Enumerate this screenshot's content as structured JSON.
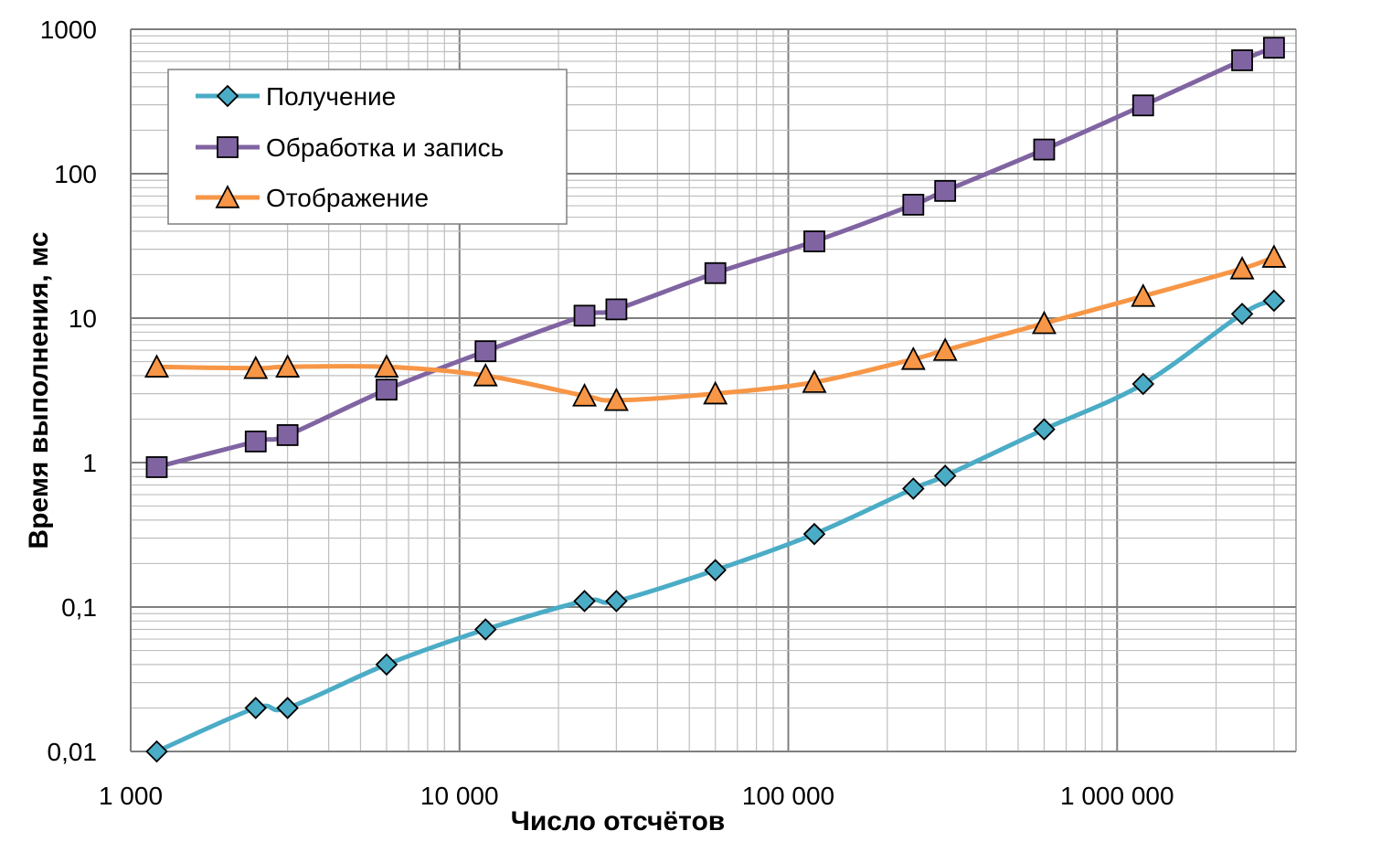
{
  "chart_data": {
    "type": "line",
    "title": "",
    "xlabel": "Число отсчётов",
    "ylabel": "Время выполнения, мс",
    "x_scale": "log",
    "y_scale": "log",
    "xlim": [
      1000,
      3500000
    ],
    "ylim": [
      0.01,
      1000
    ],
    "x_ticks": [
      {
        "value": 1000,
        "label": "1 000"
      },
      {
        "value": 10000,
        "label": "10 000"
      },
      {
        "value": 100000,
        "label": "100 000"
      },
      {
        "value": 1000000,
        "label": "1 000 000"
      }
    ],
    "y_ticks": [
      {
        "value": 0.01,
        "label": "0,01"
      },
      {
        "value": 0.1,
        "label": "0,1"
      },
      {
        "value": 1,
        "label": "1"
      },
      {
        "value": 10,
        "label": "10"
      },
      {
        "value": 100,
        "label": "100"
      },
      {
        "value": 1000,
        "label": "1000"
      }
    ],
    "grid": true,
    "legend_position": "top-left",
    "x": [
      1200,
      2400,
      3000,
      6000,
      12000,
      24000,
      30000,
      60000,
      120000,
      240000,
      300000,
      600000,
      1200000,
      2400000,
      3000000
    ],
    "series": [
      {
        "name": "Получение",
        "color": "#4BACC6",
        "marker": "diamond",
        "values": [
          0.01,
          0.02,
          0.02,
          0.04,
          0.07,
          0.11,
          0.11,
          0.18,
          0.32,
          0.66,
          0.81,
          1.7,
          3.5,
          10.7,
          13.2
        ]
      },
      {
        "name": "Обработка и запись",
        "color": "#8064A2",
        "marker": "square",
        "values": [
          0.93,
          1.4,
          1.55,
          3.2,
          5.9,
          10.4,
          11.5,
          20.5,
          34,
          61,
          76,
          147,
          297,
          610,
          745
        ]
      },
      {
        "name": "Отображение",
        "color": "#F79646",
        "marker": "triangle",
        "values": [
          4.6,
          4.5,
          4.6,
          4.6,
          4.0,
          2.9,
          2.7,
          3.0,
          3.6,
          5.2,
          6.0,
          9.2,
          14.2,
          22,
          26.5
        ]
      }
    ]
  }
}
